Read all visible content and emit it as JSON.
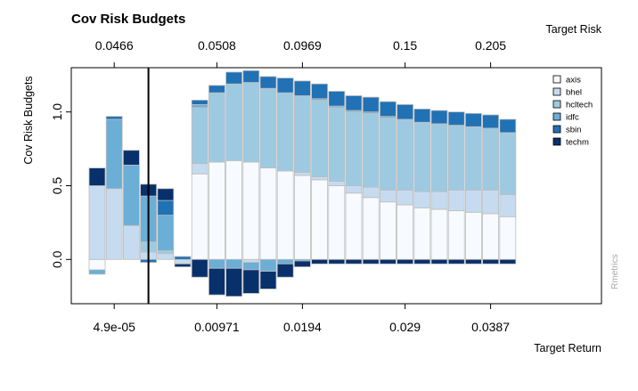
{
  "chart_data": {
    "type": "bar",
    "stacked": true,
    "title": "Cov Risk Budgets",
    "ylabel": "Cov Risk Budgets",
    "xlabel": "Target Return",
    "x2label": "Target Risk",
    "credit": "Rmetrics",
    "ylim": [
      -0.3,
      1.3
    ],
    "yticks": [
      "0.0",
      "0.5",
      "1.0"
    ],
    "ytick_values": [
      0.0,
      0.5,
      1.0
    ],
    "xticks_bottom": [
      {
        "label": "4.9e-05",
        "bar": 1
      },
      {
        "label": "0.00971",
        "bar": 7
      },
      {
        "label": "0.0194",
        "bar": 12
      },
      {
        "label": "0.029",
        "bar": 18
      },
      {
        "label": "0.0387",
        "bar": 23
      }
    ],
    "xticks_top": [
      {
        "label": "0.0466",
        "bar": 1
      },
      {
        "label": "0.0508",
        "bar": 7
      },
      {
        "label": "0.0969",
        "bar": 12
      },
      {
        "label": "0.15",
        "bar": 18
      },
      {
        "label": "0.205",
        "bar": 23
      }
    ],
    "n_bars": 25,
    "frontier_after_bar": 3.5,
    "legend_position": "top-right",
    "series": [
      {
        "name": "axis",
        "color": "#F7FBFF",
        "values": [
          -0.07,
          0.0,
          0.0,
          0.0,
          0.0,
          0.0,
          0.58,
          0.66,
          0.67,
          0.66,
          0.62,
          0.6,
          0.57,
          0.54,
          0.5,
          0.45,
          0.42,
          0.39,
          0.37,
          0.35,
          0.34,
          0.33,
          0.32,
          0.31,
          0.29
        ]
      },
      {
        "name": "bhel",
        "color": "#C6DBEF",
        "values": [
          0.5,
          0.48,
          0.23,
          0.05,
          0.04,
          -0.03,
          0.07,
          0.0,
          0.0,
          -0.02,
          0.0,
          0.0,
          0.02,
          0.02,
          0.03,
          0.05,
          0.07,
          0.08,
          0.1,
          0.11,
          0.12,
          0.14,
          0.15,
          0.16,
          0.15
        ]
      },
      {
        "name": "hcltech",
        "color": "#9ECAE1",
        "values": [
          0.0,
          0.0,
          0.0,
          0.07,
          0.02,
          0.0,
          0.38,
          0.47,
          0.52,
          0.54,
          0.54,
          0.53,
          0.52,
          0.52,
          0.5,
          0.5,
          0.5,
          0.49,
          0.48,
          0.47,
          0.46,
          0.44,
          0.43,
          0.42,
          0.42
        ]
      },
      {
        "name": "idfc",
        "color": "#6BAED6",
        "values": [
          -0.03,
          0.47,
          0.41,
          0.31,
          0.24,
          0.0,
          0.02,
          -0.06,
          -0.06,
          -0.05,
          -0.08,
          -0.03,
          -0.01,
          0.01,
          0.01,
          0.01,
          0.01,
          0.01,
          0.0,
          0.0,
          0.0,
          0.0,
          0.0,
          0.0,
          0.0
        ]
      },
      {
        "name": "sbin",
        "color": "#2171B5",
        "values": [
          0.0,
          0.02,
          0.0,
          -0.02,
          0.1,
          0.02,
          0.03,
          0.05,
          0.08,
          0.08,
          0.08,
          0.1,
          0.1,
          0.1,
          0.1,
          0.1,
          0.1,
          0.1,
          0.1,
          0.09,
          0.09,
          0.09,
          0.09,
          0.09,
          0.09
        ]
      },
      {
        "name": "techm",
        "color": "#08306B",
        "values": [
          0.12,
          0.0,
          0.1,
          0.08,
          0.08,
          -0.02,
          -0.12,
          -0.18,
          -0.19,
          -0.16,
          -0.12,
          -0.09,
          -0.04,
          -0.03,
          -0.03,
          -0.03,
          -0.03,
          -0.03,
          -0.03,
          -0.03,
          -0.03,
          -0.03,
          -0.03,
          -0.03,
          -0.03
        ]
      }
    ]
  }
}
